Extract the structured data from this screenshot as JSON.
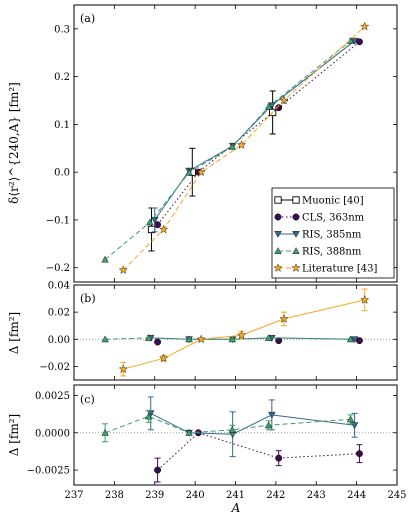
{
  "chart_data": {
    "type": "scatter",
    "colors": {
      "muonic": "#000000",
      "cls": "#3b0f4f",
      "ris385": "#35688a",
      "ris388": "#3e9e6e",
      "literature": "#f5a623"
    },
    "xlabel": "A",
    "xlim": [
      237,
      245
    ],
    "xticks": [
      "237",
      "238",
      "239",
      "240",
      "241",
      "242",
      "243",
      "244",
      "245"
    ],
    "panels": [
      {
        "label": "(a)",
        "ylabel": "δ⟨r²⟩^{240,A} [fm²]",
        "ylim": [
          -0.23,
          0.35
        ],
        "yticks": [
          -0.2,
          -0.1,
          0.0,
          0.1,
          0.2,
          0.3
        ],
        "ytick_labels": [
          "−0.2",
          "−0.1",
          "0.0",
          "0.1",
          "0.2",
          "0.3"
        ],
        "legend": {
          "position": "lower-right",
          "entries": [
            {
              "key": "muonic",
              "label": "Muonic [40]"
            },
            {
              "key": "cls",
              "label": "CLS, 363nm"
            },
            {
              "key": "ris385",
              "label": "RIS, 385nm"
            },
            {
              "key": "ris388",
              "label": "RIS, 388nm"
            },
            {
              "key": "literature",
              "label": "Literature [43]"
            }
          ]
        },
        "series": [
          {
            "name": "Muonic [40]",
            "key": "muonic",
            "marker": "square-open",
            "line": "none",
            "points": [
              {
                "x": 238.92,
                "y": -0.12,
                "err": 0.045
              },
              {
                "x": 239.93,
                "y": 0.0,
                "err": 0.05
              },
              {
                "x": 241.92,
                "y": 0.125,
                "err": 0.045
              }
            ]
          },
          {
            "name": "CLS, 363nm",
            "key": "cls",
            "marker": "circle",
            "line": "dotted",
            "points": [
              {
                "x": 239.07,
                "y": -0.11,
                "err": 0
              },
              {
                "x": 240.08,
                "y": 0.0,
                "err": 0
              },
              {
                "x": 242.07,
                "y": 0.135,
                "err": 0
              },
              {
                "x": 244.07,
                "y": 0.273,
                "err": 0
              }
            ]
          },
          {
            "name": "RIS, 385nm",
            "key": "ris385",
            "marker": "triangle-down",
            "line": "solid",
            "points": [
              {
                "x": 239.0,
                "y": -0.1,
                "err": 0.025
              },
              {
                "x": 239.85,
                "y": 0.003,
                "err": 0
              },
              {
                "x": 240.93,
                "y": 0.055,
                "err": 0
              },
              {
                "x": 241.9,
                "y": 0.14,
                "err": 0
              },
              {
                "x": 243.95,
                "y": 0.275,
                "err": 0
              }
            ]
          },
          {
            "name": "RIS, 388nm",
            "key": "ris388",
            "marker": "triangle-up",
            "line": "dashed",
            "points": [
              {
                "x": 237.77,
                "y": -0.183,
                "err": 0
              },
              {
                "x": 238.88,
                "y": -0.105,
                "err": 0
              },
              {
                "x": 239.85,
                "y": -0.001,
                "err": 0
              },
              {
                "x": 240.92,
                "y": 0.053,
                "err": 0
              },
              {
                "x": 241.82,
                "y": 0.137,
                "err": 0
              },
              {
                "x": 243.85,
                "y": 0.275,
                "err": 0
              }
            ]
          },
          {
            "name": "Literature [43]",
            "key": "literature",
            "marker": "star",
            "line": "dashed",
            "points": [
              {
                "x": 238.22,
                "y": -0.205,
                "err": 0
              },
              {
                "x": 239.22,
                "y": -0.12,
                "err": 0
              },
              {
                "x": 240.15,
                "y": 0.0,
                "err": 0
              },
              {
                "x": 241.15,
                "y": 0.057,
                "err": 0
              },
              {
                "x": 242.2,
                "y": 0.15,
                "err": 0
              },
              {
                "x": 244.2,
                "y": 0.305,
                "err": 0
              }
            ]
          }
        ]
      },
      {
        "label": "(b)",
        "ylabel": "Δ [fm²]",
        "ylim": [
          -0.03,
          0.04
        ],
        "yticks": [
          -0.02,
          0.0,
          0.02,
          0.04
        ],
        "ytick_labels": [
          "−0.02",
          "0.00",
          "0.02",
          "0.04"
        ],
        "series": [
          {
            "name": "CLS, 363nm",
            "key": "cls",
            "marker": "circle",
            "line": "none",
            "points": [
              {
                "x": 239.07,
                "y": -0.002,
                "err": 0
              },
              {
                "x": 242.07,
                "y": -0.001,
                "err": 0
              },
              {
                "x": 244.07,
                "y": -0.001,
                "err": 0
              }
            ]
          },
          {
            "name": "RIS, 385nm",
            "key": "ris385",
            "marker": "triangle-down",
            "line": "solid",
            "points": [
              {
                "x": 238.9,
                "y": 0.001,
                "err": 0
              },
              {
                "x": 239.85,
                "y": 0.0,
                "err": 0
              },
              {
                "x": 240.93,
                "y": 0.0,
                "err": 0
              },
              {
                "x": 241.9,
                "y": 0.001,
                "err": 0
              },
              {
                "x": 243.95,
                "y": 0.0,
                "err": 0
              }
            ]
          },
          {
            "name": "RIS, 388nm",
            "key": "ris388",
            "marker": "triangle-up",
            "line": "dashed",
            "points": [
              {
                "x": 237.77,
                "y": 0.0,
                "err": 0
              },
              {
                "x": 238.85,
                "y": 0.001,
                "err": 0
              },
              {
                "x": 239.85,
                "y": 0.0,
                "err": 0
              },
              {
                "x": 240.92,
                "y": 0.0,
                "err": 0
              },
              {
                "x": 241.82,
                "y": 0.001,
                "err": 0
              },
              {
                "x": 243.85,
                "y": 0.0,
                "err": 0
              }
            ]
          },
          {
            "name": "Literature [43]",
            "key": "literature",
            "marker": "star",
            "line": "solid",
            "points": [
              {
                "x": 238.22,
                "y": -0.022,
                "err": 0.005
              },
              {
                "x": 239.22,
                "y": -0.014,
                "err": 0.002
              },
              {
                "x": 240.15,
                "y": 0.0,
                "err": 0
              },
              {
                "x": 241.15,
                "y": 0.003,
                "err": 0.003
              },
              {
                "x": 242.2,
                "y": 0.015,
                "err": 0.005
              },
              {
                "x": 244.2,
                "y": 0.029,
                "err": 0.008
              }
            ]
          }
        ]
      },
      {
        "label": "(c)",
        "ylabel": "Δ [fm²]",
        "ylim": [
          -0.0035,
          0.0032
        ],
        "yticks": [
          -0.0025,
          0.0,
          0.0025
        ],
        "ytick_labels": [
          "−0.0025",
          "0.0000",
          "0.0025"
        ],
        "series": [
          {
            "name": "CLS, 363nm",
            "key": "cls",
            "marker": "circle",
            "line": "dotted",
            "points": [
              {
                "x": 239.07,
                "y": -0.0025,
                "err": 0.0008
              },
              {
                "x": 240.08,
                "y": 0.0,
                "err": 0
              },
              {
                "x": 242.07,
                "y": -0.0017,
                "err": 0.0005
              },
              {
                "x": 244.07,
                "y": -0.0014,
                "err": 0.0006
              }
            ]
          },
          {
            "name": "RIS, 385nm",
            "key": "ris385",
            "marker": "triangle-down",
            "line": "solid",
            "points": [
              {
                "x": 238.9,
                "y": 0.0013,
                "err": 0.0011
              },
              {
                "x": 239.85,
                "y": 0.0,
                "err": 0
              },
              {
                "x": 240.93,
                "y": -0.0001,
                "err": 0.0015
              },
              {
                "x": 241.9,
                "y": 0.0012,
                "err": 0.001
              },
              {
                "x": 243.95,
                "y": 0.0005,
                "err": 0.0008
              }
            ]
          },
          {
            "name": "RIS, 388nm",
            "key": "ris388",
            "marker": "triangle-up",
            "line": "dashed",
            "points": [
              {
                "x": 237.77,
                "y": 0.0,
                "err": 0.0006
              },
              {
                "x": 238.85,
                "y": 0.0011,
                "err": 0.0004
              },
              {
                "x": 239.85,
                "y": 0.0,
                "err": 0
              },
              {
                "x": 240.92,
                "y": 0.0002,
                "err": 0.0003
              },
              {
                "x": 241.82,
                "y": 0.0005,
                "err": 0.0003
              },
              {
                "x": 243.85,
                "y": 0.0009,
                "err": 0.0003
              }
            ]
          }
        ]
      }
    ]
  }
}
